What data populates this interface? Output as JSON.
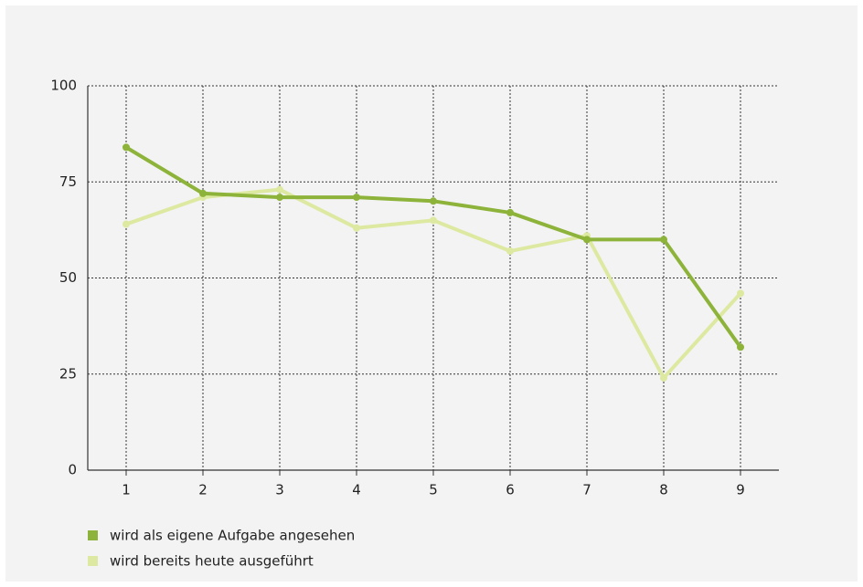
{
  "chart_data": {
    "type": "line",
    "categories": [
      "1",
      "2",
      "3",
      "4",
      "5",
      "6",
      "7",
      "8",
      "9"
    ],
    "series": [
      {
        "name": "wird als eigene Aufgabe angesehen",
        "color": "#8db33a",
        "values": [
          84,
          72,
          71,
          71,
          70,
          67,
          60,
          60,
          32
        ]
      },
      {
        "name": "wird bereits heute ausgeführt",
        "color": "#dde9a0",
        "values": [
          64,
          71,
          73,
          63,
          65,
          57,
          61,
          24,
          46
        ]
      }
    ],
    "ylim": [
      0,
      100
    ],
    "yticks": [
      0,
      25,
      50,
      75,
      100
    ],
    "grid": true
  }
}
